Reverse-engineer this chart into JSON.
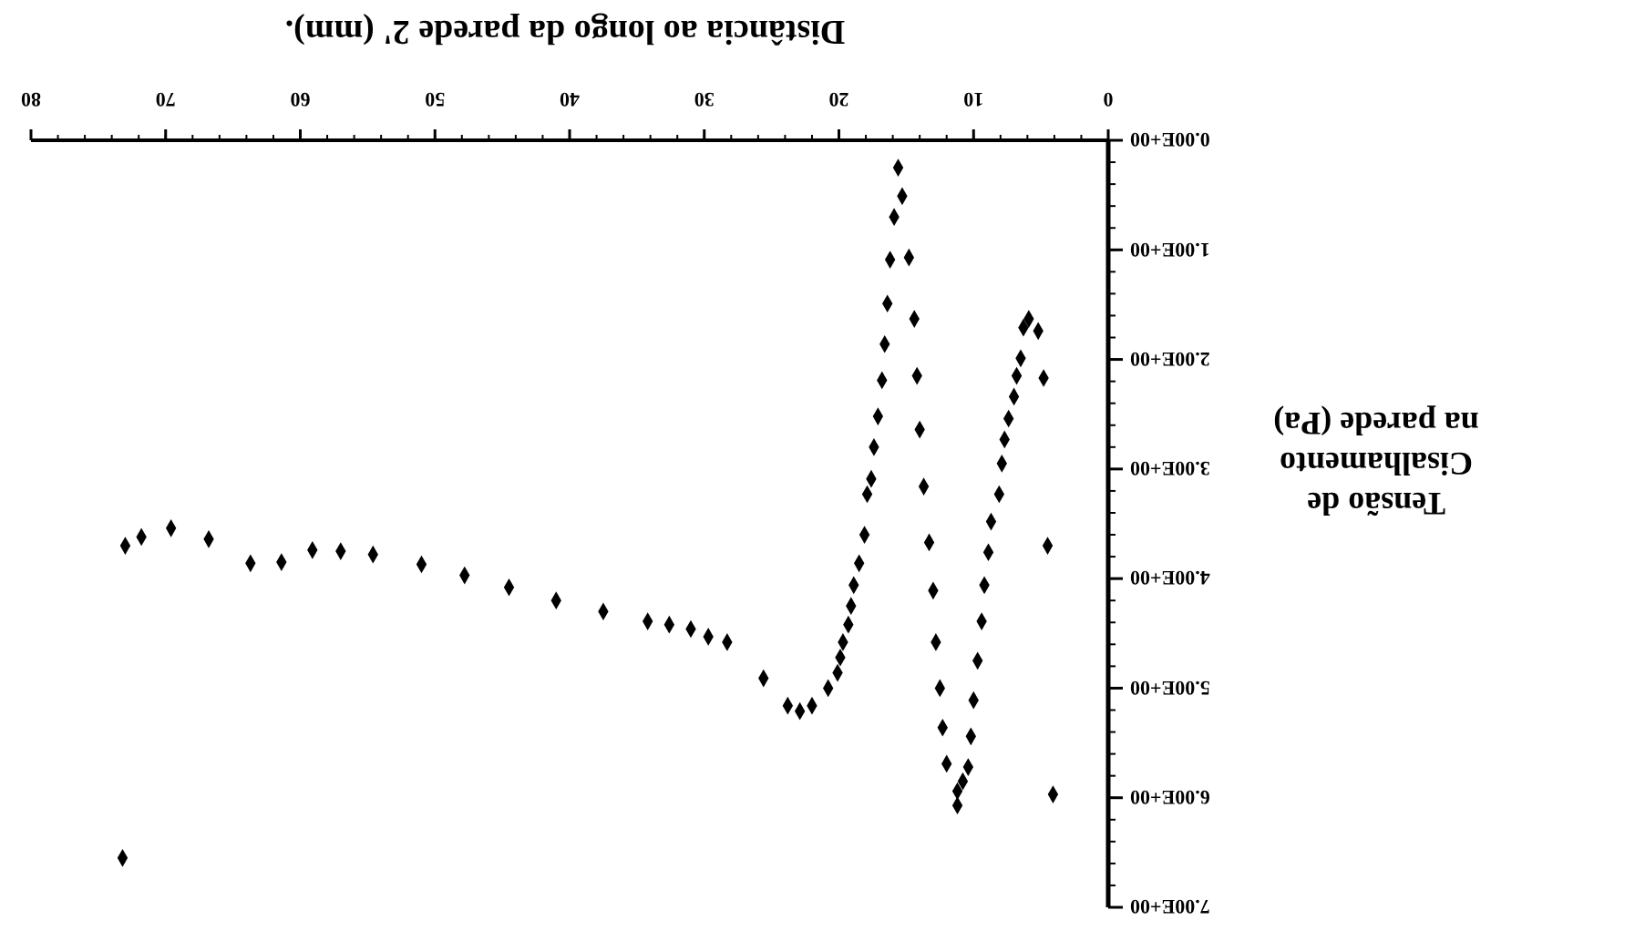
{
  "chart_data": {
    "type": "scatter",
    "xlabel": "Distância ao longo da parede 2' (mm).",
    "ylabel": "Tensão de\nCisalhamento\nna parede (Pa)",
    "xlim": [
      80,
      0
    ],
    "xticks": [
      0,
      10,
      20,
      30,
      40,
      50,
      60,
      70,
      80
    ],
    "ylim": [
      7,
      0
    ],
    "yticks": [
      {
        "value": 0,
        "label": "0.00E+00"
      },
      {
        "value": 1,
        "label": "1.00E+00"
      },
      {
        "value": 2,
        "label": "2.00E+00"
      },
      {
        "value": 3,
        "label": "3.00E+00"
      },
      {
        "value": 4,
        "label": "4.00E+00"
      },
      {
        "value": 5,
        "label": "5.00E+00"
      },
      {
        "value": 6,
        "label": "6.00E+00"
      },
      {
        "value": 7,
        "label": "7.00E+00"
      }
    ],
    "grid": false,
    "marker": "diamond",
    "series": [
      {
        "color": "#000000",
        "x": [
          4.1,
          4.5,
          4.8,
          5.2,
          5.9,
          6.3,
          6.5,
          6.8,
          7.0,
          7.4,
          7.7,
          7.9,
          8.1,
          8.7,
          8.9,
          9.2,
          9.4,
          9.7,
          10.0,
          10.2,
          10.4,
          10.8,
          11.2,
          11.2,
          12.0,
          12.3,
          12.5,
          12.8,
          13.0,
          13.3,
          13.7,
          14.0,
          14.2,
          14.4,
          14.8,
          15.6,
          15.3,
          15.9,
          16.2,
          16.4,
          16.6,
          16.8,
          17.1,
          17.4,
          17.6,
          17.9,
          18.1,
          18.5,
          18.9,
          19.1,
          19.3,
          19.7,
          19.9,
          20.1,
          20.8,
          22.0,
          22.9,
          23.8,
          25.6,
          28.3,
          29.7,
          31.0,
          32.6,
          34.2,
          37.5,
          41.0,
          44.5,
          47.8,
          51.0,
          54.6,
          57.0,
          59.1,
          61.4,
          63.7,
          66.8,
          69.6,
          71.8,
          73.0,
          73.2
        ],
        "values": [
          5.97,
          3.7,
          2.17,
          1.74,
          1.63,
          1.71,
          1.99,
          2.15,
          2.34,
          2.54,
          2.73,
          2.95,
          3.23,
          3.48,
          3.76,
          4.06,
          4.39,
          4.75,
          5.11,
          5.44,
          5.72,
          5.85,
          5.94,
          6.07,
          5.69,
          5.36,
          5.0,
          4.58,
          4.11,
          3.67,
          3.16,
          2.64,
          2.15,
          1.63,
          1.07,
          0.25,
          0.51,
          0.7,
          1.09,
          1.49,
          1.86,
          2.19,
          2.52,
          2.8,
          3.09,
          3.23,
          3.6,
          3.86,
          4.06,
          4.25,
          4.42,
          4.58,
          4.72,
          4.86,
          5.0,
          5.16,
          5.21,
          5.16,
          4.91,
          4.58,
          4.53,
          4.46,
          4.42,
          4.39,
          4.3,
          4.2,
          4.08,
          3.97,
          3.87,
          3.78,
          3.75,
          3.74,
          3.85,
          3.86,
          3.64,
          3.54,
          3.62,
          3.7,
          6.55
        ]
      }
    ]
  }
}
